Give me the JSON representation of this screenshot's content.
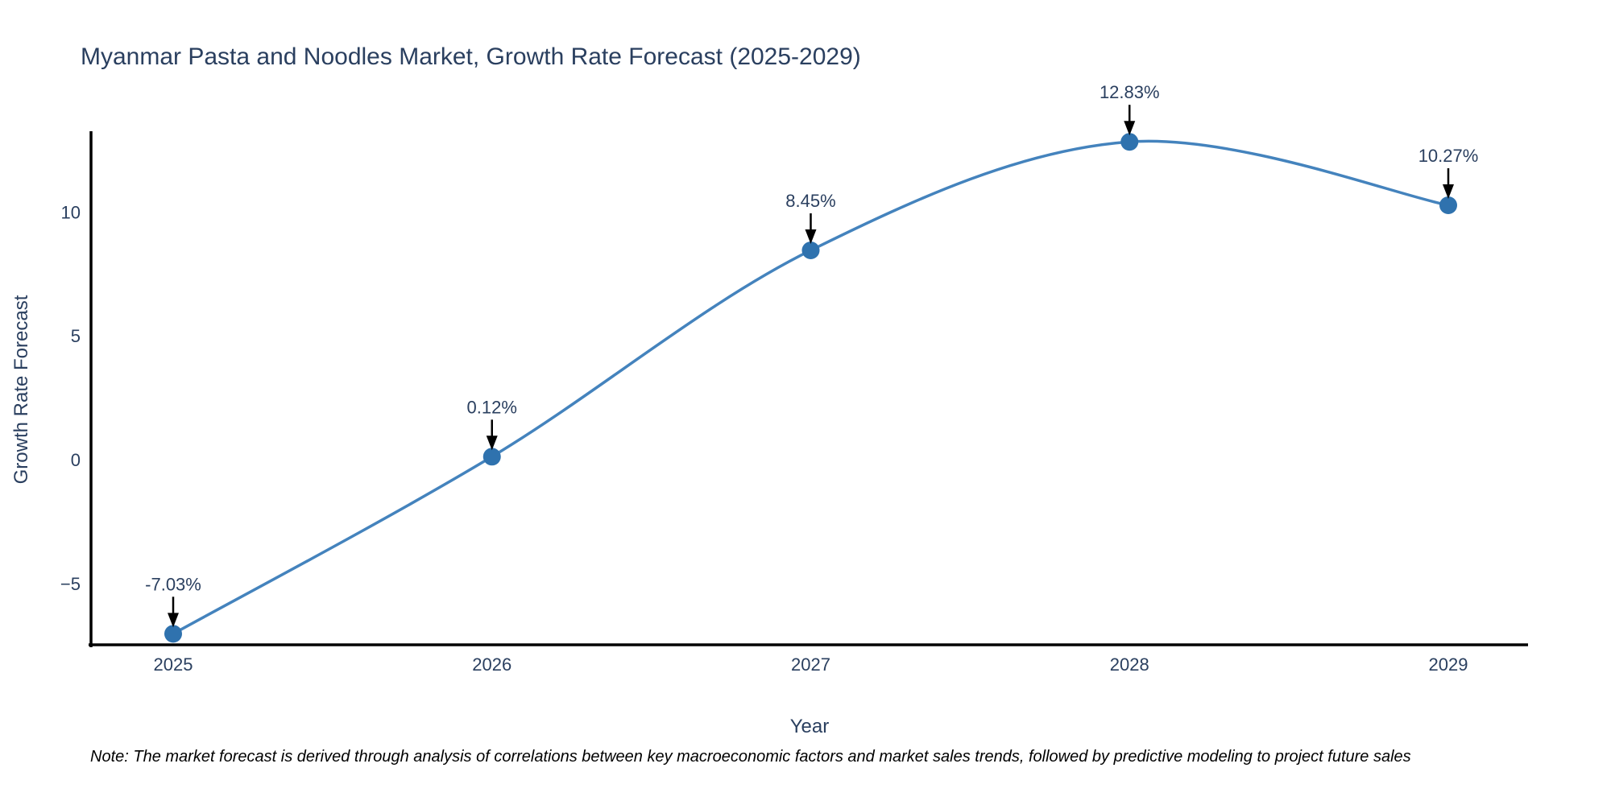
{
  "title": "Myanmar Pasta and Noodles Market, Growth Rate Forecast (2025-2029)",
  "note": "Note: The market forecast is derived through analysis of correlations between key macroeconomic factors and market sales trends, followed by predictive modeling to project future sales",
  "chart_data": {
    "type": "line",
    "curve": "spline",
    "title": "Myanmar Pasta and Noodles Market, Growth Rate Forecast (2025-2029)",
    "xlabel": "Year",
    "ylabel": "Growth Rate Forecast",
    "x": [
      2025,
      2026,
      2027,
      2028,
      2029
    ],
    "series": [
      {
        "name": "Growth Rate Forecast",
        "values": [
          -7.03,
          0.12,
          8.45,
          12.83,
          10.27
        ]
      }
    ],
    "point_labels": [
      "-7.03%",
      "0.12%",
      "8.45%",
      "12.83%",
      "10.27%"
    ],
    "xticks": [
      "2025",
      "2026",
      "2027",
      "2028",
      "2029"
    ],
    "yticks": {
      "values": [
        10,
        5,
        0,
        -5
      ],
      "labels": [
        "10",
        "5",
        "0",
        "−5"
      ]
    },
    "ylim": [
      -7.5,
      13.3
    ],
    "grid": false,
    "legend": "none",
    "colors": {
      "line": "#4483bd",
      "marker": "#2f72ae",
      "axis": "#000000",
      "text": "#2a3f5f",
      "arrow": "#000000",
      "note_text": "#000000",
      "background": "#ffffff"
    }
  }
}
